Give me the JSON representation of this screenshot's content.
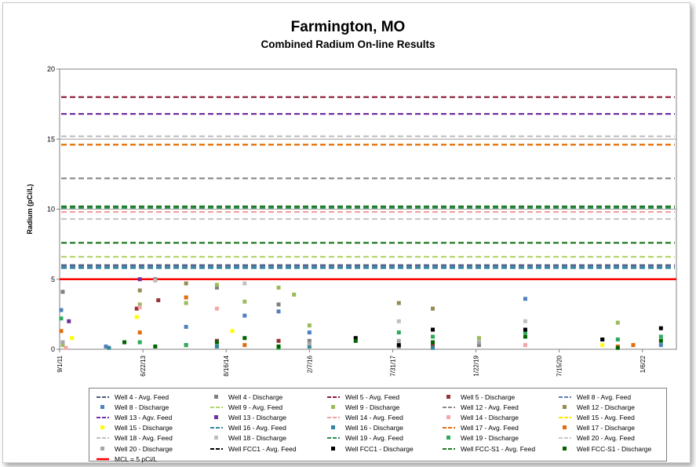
{
  "chart_data": {
    "type": "scatter",
    "title": "Farmington, MO",
    "subtitle": "Combined Radium On-line Results",
    "ylabel": "Radium (pCi/L)",
    "xlabel": "",
    "ylim": [
      0,
      20
    ],
    "y_ticks": [
      0,
      5,
      10,
      15,
      20
    ],
    "x_ticks": [
      "9/1/11",
      "6/22/13",
      "8/16/14",
      "2/7/16",
      "7/31/17",
      "1/22/19",
      "7/15/20",
      "1/6/22"
    ],
    "grid": "horizontal",
    "legend_position": "bottom",
    "mcl": {
      "label": "MCL = 5 pCi/L",
      "value": 5,
      "color": "#ff0000"
    },
    "series": [
      {
        "name": "Well 4 - Avg. Feed",
        "kind": "avg",
        "color": "#4a5a7c",
        "value": 6.0
      },
      {
        "name": "Well 4 - Discharge",
        "kind": "discharge",
        "color": "#808080",
        "points": [
          [
            0.1,
            4.1
          ],
          [
            3.1,
            5.0
          ],
          [
            5.1,
            4.4
          ],
          [
            7.1,
            3.2
          ],
          [
            8.1,
            0.6
          ],
          [
            11.0,
            0.2
          ],
          [
            13.6,
            0.3
          ]
        ]
      },
      {
        "name": "Well 5 - Avg. Feed",
        "kind": "avg",
        "color": "#8b1c3a",
        "value": 18.0
      },
      {
        "name": "Well 5 - Discharge",
        "kind": "discharge",
        "color": "#993333",
        "points": [
          [
            2.5,
            2.9
          ],
          [
            3.2,
            3.5
          ],
          [
            5.1,
            0.6
          ],
          [
            7.1,
            0.6
          ],
          [
            12.1,
            0.3
          ]
        ]
      },
      {
        "name": "Well 8 - Avg. Feed",
        "kind": "avg",
        "color": "#5b7fb4",
        "value": 5.9
      },
      {
        "name": "Well 8 - Discharge",
        "kind": "discharge",
        "color": "#4f81bd",
        "points": [
          [
            0.05,
            2.8
          ],
          [
            1.5,
            0.2
          ],
          [
            4.1,
            1.6
          ],
          [
            6.0,
            2.4
          ],
          [
            7.1,
            2.7
          ],
          [
            8.1,
            1.2
          ],
          [
            15.1,
            3.6
          ],
          [
            17.6,
            0.7
          ],
          [
            19.5,
            0.3
          ]
        ]
      },
      {
        "name": "Well 9 - Avg. Feed",
        "kind": "avg",
        "color": "#b5d46a",
        "value": 6.6
      },
      {
        "name": "Well 9 - Discharge",
        "kind": "discharge",
        "color": "#9bbb59",
        "points": [
          [
            0.1,
            0.3
          ],
          [
            2.6,
            3.2
          ],
          [
            4.1,
            3.3
          ],
          [
            5.1,
            4.6
          ],
          [
            6.0,
            3.4
          ],
          [
            7.1,
            4.4
          ],
          [
            7.6,
            3.9
          ],
          [
            8.1,
            1.7
          ],
          [
            13.6,
            0.8
          ],
          [
            18.1,
            1.9
          ]
        ]
      },
      {
        "name": "Well 12 - Avg. Feed",
        "kind": "avg",
        "color": "#8c8c8c",
        "value": 12.2
      },
      {
        "name": "Well 12 - Discharge",
        "kind": "discharge",
        "color": "#948a54",
        "points": [
          [
            2.6,
            4.2
          ],
          [
            4.1,
            4.7
          ],
          [
            11.0,
            3.3
          ],
          [
            12.1,
            2.9
          ]
        ]
      },
      {
        "name": "Well 13 - Agv. Feed",
        "kind": "avg",
        "color": "#7030a0",
        "value": 16.8
      },
      {
        "name": "Well 13 - Discharge",
        "kind": "discharge",
        "color": "#7030a0",
        "points": [
          [
            0.3,
            2.0
          ],
          [
            2.6,
            5.0
          ]
        ]
      },
      {
        "name": "Well 14 - Avg. Feed",
        "kind": "avg",
        "color": "#f2a0a0",
        "value": 9.8
      },
      {
        "name": "Well 14 - Discharge",
        "kind": "discharge",
        "color": "#f4a6a6",
        "points": [
          [
            0.2,
            0.1
          ],
          [
            2.6,
            3.0
          ],
          [
            5.1,
            2.9
          ],
          [
            15.1,
            0.3
          ]
        ]
      },
      {
        "name": "Well 15 - Avg. Feed",
        "kind": "avg",
        "color": "#ffe600",
        "value": 14.6
      },
      {
        "name": "Well 15 - Discharge",
        "kind": "discharge",
        "color": "#ffff00",
        "points": [
          [
            0.4,
            0.8
          ],
          [
            2.5,
            2.3
          ],
          [
            5.6,
            1.3
          ],
          [
            17.6,
            0.3
          ]
        ]
      },
      {
        "name": "Well 16 - Avg. Feed",
        "kind": "avg",
        "color": "#31859c",
        "value": 5.8
      },
      {
        "name": "Well 16 - Discharge",
        "kind": "discharge",
        "color": "#31859c",
        "points": [
          [
            1.6,
            0.1
          ],
          [
            4.1,
            0.3
          ],
          [
            5.1,
            0.2
          ],
          [
            8.1,
            0.2
          ],
          [
            12.1,
            0.1
          ]
        ]
      },
      {
        "name": "Well 17 - Avg. Feed",
        "kind": "avg",
        "color": "#e36c09",
        "value": 14.6
      },
      {
        "name": "Well 17 - Discharge",
        "kind": "discharge",
        "color": "#e36c09",
        "points": [
          [
            0.05,
            1.3
          ],
          [
            2.6,
            1.2
          ],
          [
            4.1,
            3.7
          ],
          [
            6.0,
            0.3
          ],
          [
            18.1,
            0.2
          ],
          [
            18.6,
            0.3
          ]
        ]
      },
      {
        "name": "Well 18 - Avg. Feed",
        "kind": "avg",
        "color": "#c0c0c0",
        "value": 15.2
      },
      {
        "name": "Well 18 - Discharge",
        "kind": "discharge",
        "color": "#bfbfbf",
        "points": [
          [
            3.1,
            4.9
          ],
          [
            6.0,
            4.7
          ],
          [
            11.0,
            2.0
          ],
          [
            15.1,
            2.0
          ]
        ]
      },
      {
        "name": "Well 19 - Avg. Feed",
        "kind": "avg",
        "color": "#2e8b57",
        "value": 10.1
      },
      {
        "name": "Well 19 - Discharge",
        "kind": "discharge",
        "color": "#2eaa5a",
        "points": [
          [
            0.05,
            2.2
          ],
          [
            2.6,
            0.5
          ],
          [
            4.1,
            0.3
          ],
          [
            7.1,
            0.1
          ],
          [
            11.0,
            1.2
          ],
          [
            12.1,
            0.9
          ],
          [
            15.1,
            1.2
          ],
          [
            18.1,
            0.7
          ],
          [
            19.5,
            0.9
          ]
        ]
      },
      {
        "name": "Well 20 - Avg. Feed",
        "kind": "avg",
        "color": "#c8c8c8",
        "value": 9.3
      },
      {
        "name": "Well 20 - Discharge",
        "kind": "discharge",
        "color": "#a6a6a6",
        "points": [
          [
            0.1,
            0.5
          ],
          [
            8.1,
            0.4
          ],
          [
            11.0,
            0.6
          ],
          [
            13.6,
            0.5
          ]
        ]
      },
      {
        "name": "Well FCC1 - Avg. Feed",
        "kind": "avg",
        "color": "#000000",
        "value": 0.0
      },
      {
        "name": "Well FCC1 - Discharge",
        "kind": "discharge",
        "color": "#000000",
        "points": [
          [
            9.6,
            0.8
          ],
          [
            11.0,
            0.3
          ],
          [
            12.1,
            1.4
          ],
          [
            15.1,
            1.4
          ],
          [
            17.6,
            0.7
          ],
          [
            19.5,
            1.5
          ]
        ]
      },
      {
        "name": "Well FCC-S1 - Avg. Feed",
        "kind": "avg",
        "color": "#1f7a1f",
        "value": 10.2
      },
      {
        "name": "Well FCC-S1 - Discharge",
        "kind": "discharge",
        "color": "#006400",
        "points": [
          [
            2.1,
            0.5
          ],
          [
            3.1,
            0.2
          ],
          [
            5.1,
            0.5
          ],
          [
            6.0,
            0.8
          ],
          [
            7.1,
            0.2
          ],
          [
            9.6,
            0.6
          ],
          [
            12.1,
            0.5
          ],
          [
            15.1,
            0.9
          ],
          [
            18.1,
            0.1
          ],
          [
            19.5,
            0.6
          ]
        ]
      }
    ],
    "avg_green_line": {
      "value": 7.6,
      "color": "#1f7a1f"
    }
  }
}
